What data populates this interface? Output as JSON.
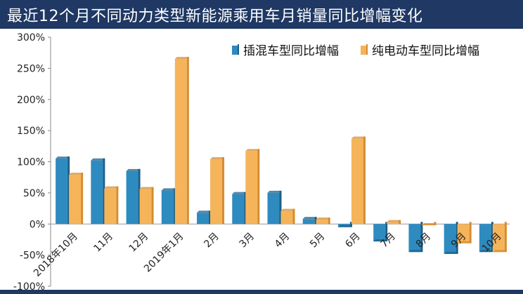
{
  "colors": {
    "title_bg": "#1f3864",
    "series1_front": "#2e8bc0",
    "series1_side": "#1b5f88",
    "series2_front": "#f6b45a",
    "series2_side": "#d58c2f"
  },
  "chart_data": {
    "type": "bar",
    "title": "最近12个月不同动力类型新能源乘用车月销量同比增幅变化",
    "xlabel": "",
    "ylabel": "",
    "ylim": [
      -100,
      300
    ],
    "yticks": [
      "300%",
      "250%",
      "200%",
      "150%",
      "100%",
      "50%",
      "0%",
      "-50%",
      "-100%"
    ],
    "ytick_values": [
      300,
      250,
      200,
      150,
      100,
      50,
      0,
      -50,
      -100
    ],
    "grid": false,
    "legend_position": "top-right",
    "categories": [
      "2018年10月",
      "11月",
      "12月",
      "2019年1月",
      "2月",
      "3月",
      "4月",
      "5月",
      "6月",
      "7月",
      "8月",
      "9月",
      "10月"
    ],
    "series": [
      {
        "name": "插混车型同比增幅",
        "values": [
          105,
          102,
          85,
          54,
          18,
          48,
          50,
          8,
          -5,
          -28,
          -45,
          -48,
          -45
        ]
      },
      {
        "name": "纯电动车型同比增幅",
        "values": [
          79,
          57,
          56,
          265,
          104,
          117,
          21,
          7,
          137,
          3,
          -2,
          -31,
          -45
        ]
      }
    ]
  }
}
